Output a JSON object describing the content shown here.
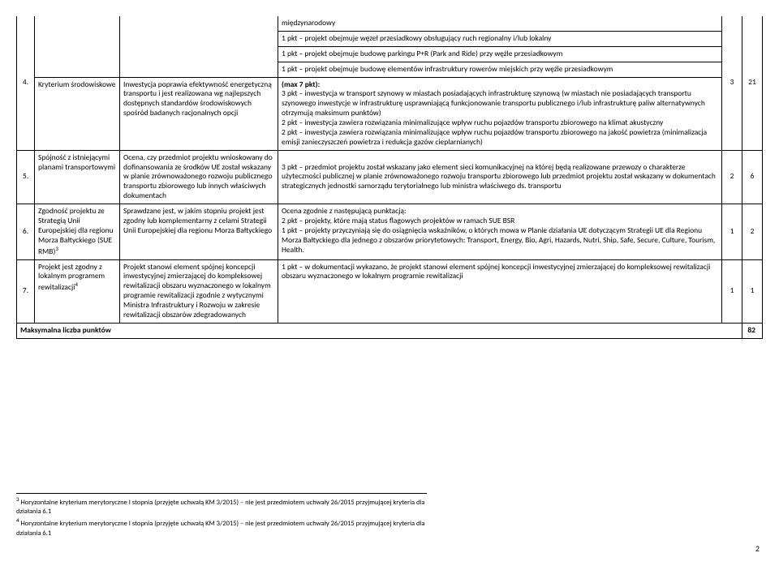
{
  "rows_pre": [
    "międzynarodowy",
    "1 pkt – projekt obejmuje węzeł przesiadkowy obsługujący ruch regionalny i/lub lokalny",
    "1 pkt – projekt obejmuje budowę parkingu P+R (Park and Ride) przy węźle przesiadkowym",
    "1 pkt – projekt obejmuje budowę elementów infrastruktury rowerów miejskich przy węźle przesiadkowym"
  ],
  "row4": {
    "num": "4.",
    "name": "Kryterium środowiskowe",
    "desc": "Inwestycja poprawia efektywność energetyczną transportu i jest realizowana wg najlepszych dostępnych standardów środowiskowych spośród badanych racjonalnych opcji",
    "criteria_title": "(max 7 pkt):",
    "criteria": "3 pkt – inwestycja w transport szynowy w miastach posiadających infrastrukturę szynową (w miastach nie posiadających transportu szynowego inwestycje w infrastrukturę usprawniającą funkcjonowanie transportu publicznego i/lub infrastrukturę paliw alternatywnych otrzymują maksimum punktów)\n2 pkt – inwestycja zawiera rozwiązania minimalizujące wpływ ruchu pojazdów transportu zbiorowego na klimat akustyczny\n2 pkt – inwestycja zawiera rozwiązania minimalizujące wpływ ruchu pojazdów transportu zbiorowego na jakość powietrza (minimalizacja emisji zanieczyszczeń powietrza i redukcja gazów cieplarnianych)",
    "s1": "3",
    "s2": "21"
  },
  "row5": {
    "num": "5.",
    "name": "Spójność z istniejącymi planami transportowymi",
    "desc": "Ocena, czy przedmiot projektu wnioskowany do dofinansowania ze środków UE został wskazany w planie zrównoważonego rozwoju publicznego transportu zbiorowego lub innych właściwych dokumentach",
    "criteria": "3 pkt – przedmiot projektu został wskazany jako element sieci komunikacyjnej na której będą realizowane przewozy o charakterze użyteczności publicznej w planie zrównoważonego rozwoju transportu zbiorowego lub  przedmiot projektu został wskazany w dokumentach strategicznych jednostki samorządu terytorialnego lub ministra właściwego ds. transportu",
    "s1": "2",
    "s2": "6"
  },
  "row6": {
    "num": "6.",
    "name_html": "Zgodność projektu ze Strategią Unii Europejskiej dla regionu Morza Bałtyckiego (SUE RMB)<sup>3</sup>",
    "desc": "Sprawdzane jest, w jakim stopniu  projekt jest zgodny lub komplementarny z celami Strategii Unii Europejskiej dla regionu Morza Bałtyckiego",
    "criteria": "Ocena zgodnie z następującą punktacją:\n2 pkt – projekty, które mają status flagowych projektów w ramach SUE BSR\n1 pkt – projekty przyczyniają się do osiągnięcia wskaźników, o których mowa w Planie działania UE dotyczącym Strategii UE dla Regionu Morza Bałtyckiego dla jednego z obszarów priorytetowych: Transport, Energy, Bio, Agri, Hazards, Nutri, Ship, Safe, Secure, Culture, Tourism, Health.",
    "s1": "1",
    "s2": "2"
  },
  "row7": {
    "num": "7.",
    "name_html": "Projekt jest zgodny z lokalnym programem rewitalizacji<sup>4</sup>",
    "desc": "Projekt stanowi element spójnej koncepcji inwestycyjnej zmierzającej do kompleksowej rewitalizacji obszaru wyznaczonego w lokalnym programie rewitalizacji zgodnie z wytycznymi Ministra Infrastruktury i Rozwoju w zakresie rewitalizacji obszarów zdegradowanych",
    "criteria": "1 pkt – w dokumentacji wykazano, że projekt stanowi element spójnej koncepcji inwestycyjnej zmierzającej do kompleksowej rewitalizacji obszaru wyznaczonego w lokalnym programie rewitalizacji",
    "s1": "1",
    "s2": "1"
  },
  "max": {
    "label": "Maksymalna liczba punktów",
    "value": "82"
  },
  "footnotes": {
    "f3": "Horyzontalne kryterium merytoryczne I stopnia (przyjęte uchwałą KM 3/2015) – nie jest przedmiotem uchwały 26/2015 przyjmującej kryteria dla działania 6.1",
    "f4": "Horyzontalne kryterium merytoryczne I stopnia (przyjęte uchwałą KM 3/2015) – nie jest przedmiotem uchwały 26/2015 przyjmującej kryteria dla działania 6.1"
  },
  "page": "2"
}
